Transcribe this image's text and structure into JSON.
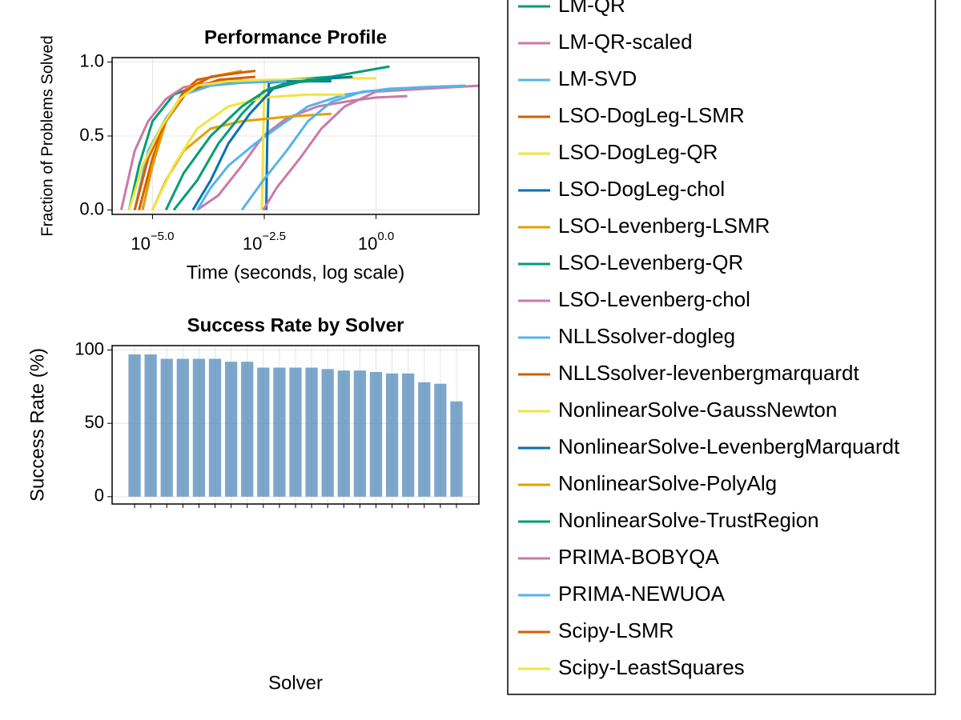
{
  "chart_data": [
    {
      "type": "line",
      "title": "Performance Profile",
      "xlabel": "Time (seconds, log scale)",
      "ylabel": "Fraction of Problems Solved",
      "xlog": true,
      "grid": true,
      "xlim": [
        1.25e-06,
        200
      ],
      "ylim": [
        -0.03,
        1.03
      ],
      "xticks": [
        {
          "value": 1e-05,
          "label": "10−5.0"
        },
        {
          "value": 0.0031622776601683794,
          "label": "10−2.5"
        },
        {
          "value": 1,
          "label": "100.0"
        }
      ],
      "yticks": [
        {
          "value": 0,
          "label": "0.0"
        },
        0.5,
        {
          "value": 1,
          "label": "1.0"
        }
      ],
      "series": [
        {
          "name": "LM-QR",
          "color": "#009e73",
          "x": [
            3e-06,
            5e-06,
            1e-05,
            3e-05,
            0.0001,
            0.001,
            0.01,
            0.1,
            2
          ],
          "values": [
            0,
            0.3,
            0.6,
            0.78,
            0.84,
            0.86,
            0.88,
            0.9,
            0.97
          ]
        },
        {
          "name": "LM-QR-scaled",
          "color": "#cc79a7",
          "x": [
            0.0001,
            0.0003,
            0.001,
            0.003,
            0.01,
            0.05,
            0.3,
            1,
            5
          ],
          "values": [
            0,
            0.1,
            0.3,
            0.5,
            0.62,
            0.7,
            0.74,
            0.76,
            0.77
          ]
        },
        {
          "name": "LM-SVD",
          "color": "#56b4e9",
          "x": [
            0.0001,
            0.0002,
            0.0005,
            0.002,
            0.008,
            0.03,
            0.2,
            2,
            100
          ],
          "values": [
            0,
            0.15,
            0.3,
            0.45,
            0.58,
            0.7,
            0.78,
            0.82,
            0.84
          ]
        },
        {
          "name": "LSO-DogLeg-LSMR",
          "color": "#d55e00",
          "x": [
            6e-06,
            1e-05,
            2e-05,
            5e-05,
            0.0001,
            0.0005,
            0.002
          ],
          "values": [
            0,
            0.3,
            0.6,
            0.8,
            0.88,
            0.92,
            0.94
          ]
        },
        {
          "name": "LSO-DogLeg-QR",
          "color": "#f0e442",
          "x": [
            0.0028,
            0.003,
            0.0032,
            0.01,
            0.1,
            1
          ],
          "values": [
            0,
            0.5,
            0.88,
            0.88,
            0.89,
            0.89
          ]
        },
        {
          "name": "LSO-DogLeg-chol",
          "color": "#0072b2",
          "x": [
            0.0035,
            0.0037,
            0.004,
            0.01,
            0.1
          ],
          "values": [
            0,
            0.5,
            0.86,
            0.87,
            0.87
          ]
        },
        {
          "name": "LSO-Levenberg-LSMR",
          "color": "#e69f00",
          "x": [
            1e-05,
            2e-05,
            5e-05,
            0.0002,
            0.001,
            0.01,
            0.1
          ],
          "values": [
            0,
            0.2,
            0.4,
            0.55,
            0.6,
            0.63,
            0.65
          ]
        },
        {
          "name": "LSO-Levenberg-QR",
          "color": "#009e73",
          "x": [
            3e-05,
            0.0001,
            0.0003,
            0.001,
            0.003,
            0.01,
            0.1
          ],
          "values": [
            0,
            0.2,
            0.45,
            0.65,
            0.8,
            0.86,
            0.88
          ]
        },
        {
          "name": "LSO-Levenberg-chol",
          "color": "#cc79a7",
          "x": [
            2e-06,
            4e-06,
            8e-06,
            2e-05,
            5e-05,
            0.0002,
            0.001
          ],
          "values": [
            0,
            0.4,
            0.6,
            0.75,
            0.83,
            0.86,
            0.88
          ]
        },
        {
          "name": "NLLSsolver-dogleg",
          "color": "#56b4e9",
          "x": [
            4e-06,
            8e-06,
            2e-05,
            5e-05,
            0.0002,
            0.001,
            0.01
          ],
          "values": [
            0,
            0.4,
            0.62,
            0.78,
            0.84,
            0.86,
            0.87
          ]
        },
        {
          "name": "NLLSsolver-levenbergmarquardt",
          "color": "#d55e00",
          "x": [
            5e-06,
            1e-05,
            2e-05,
            6e-05,
            0.0003,
            0.002
          ],
          "values": [
            0,
            0.35,
            0.6,
            0.8,
            0.88,
            0.9
          ]
        },
        {
          "name": "NonlinearSolve-GaussNewton",
          "color": "#f0e442",
          "x": [
            1e-05,
            3e-05,
            0.0001,
            0.0005,
            0.003,
            0.03,
            0.2
          ],
          "values": [
            0,
            0.3,
            0.55,
            0.7,
            0.76,
            0.78,
            0.78
          ]
        },
        {
          "name": "NonlinearSolve-LevenbergMarquardt",
          "color": "#0072b2",
          "x": [
            8e-05,
            0.0002,
            0.0005,
            0.0015,
            0.005,
            0.03,
            0.3
          ],
          "values": [
            0,
            0.2,
            0.45,
            0.65,
            0.82,
            0.88,
            0.9
          ]
        },
        {
          "name": "NonlinearSolve-PolyAlg",
          "color": "#e69f00",
          "x": [
            6e-06,
            1e-05,
            2e-05,
            6e-05,
            0.0002,
            0.001
          ],
          "values": [
            0,
            0.3,
            0.6,
            0.82,
            0.9,
            0.94
          ]
        },
        {
          "name": "NonlinearSolve-TrustRegion",
          "color": "#009e73",
          "x": [
            2e-05,
            5e-05,
            0.0002,
            0.001,
            0.004,
            0.02,
            0.1
          ],
          "values": [
            0,
            0.25,
            0.5,
            0.7,
            0.82,
            0.87,
            0.9
          ]
        },
        {
          "name": "PRIMA-BOBYQA",
          "color": "#cc79a7",
          "x": [
            0.003,
            0.006,
            0.02,
            0.06,
            0.2,
            1,
            50,
            200
          ],
          "values": [
            0,
            0.15,
            0.35,
            0.55,
            0.7,
            0.8,
            0.83,
            0.84
          ]
        },
        {
          "name": "PRIMA-NEWUOA",
          "color": "#56b4e9",
          "x": [
            0.001,
            0.003,
            0.01,
            0.03,
            0.1,
            0.5,
            10,
            100
          ],
          "values": [
            0,
            0.2,
            0.4,
            0.6,
            0.73,
            0.8,
            0.83,
            0.84
          ]
        },
        {
          "name": "Scipy-LSMR",
          "color": "#d55e00",
          "x": [
            4e-06,
            8e-06,
            2e-05,
            5e-05,
            0.0002,
            0.001
          ],
          "values": [
            0,
            0.35,
            0.6,
            0.8,
            0.9,
            0.93
          ]
        },
        {
          "name": "Scipy-LeastSquares",
          "color": "#f0e442",
          "x": [
            3e-06,
            6e-06,
            1.5e-05,
            4e-05,
            0.0001,
            0.0005,
            0.003
          ],
          "values": [
            0,
            0.3,
            0.55,
            0.75,
            0.84,
            0.87,
            0.88
          ]
        }
      ]
    },
    {
      "type": "bar",
      "title": "Success Rate by Solver",
      "xlabel": "Solver",
      "ylabel": "Success Rate (%)",
      "grid": true,
      "color": "#4682b4",
      "ylim": [
        -5,
        103
      ],
      "yticks": [
        0,
        50,
        100
      ],
      "categories": [
        null,
        null,
        null,
        null,
        null,
        null,
        null,
        null,
        null,
        null,
        null,
        null,
        null,
        null,
        null,
        null,
        null,
        null,
        null,
        null,
        null
      ],
      "values": [
        97,
        97,
        94,
        94,
        94,
        94,
        92,
        92,
        88,
        88,
        88,
        88,
        87,
        86,
        86,
        85,
        84,
        84,
        78,
        77,
        65
      ]
    }
  ]
}
